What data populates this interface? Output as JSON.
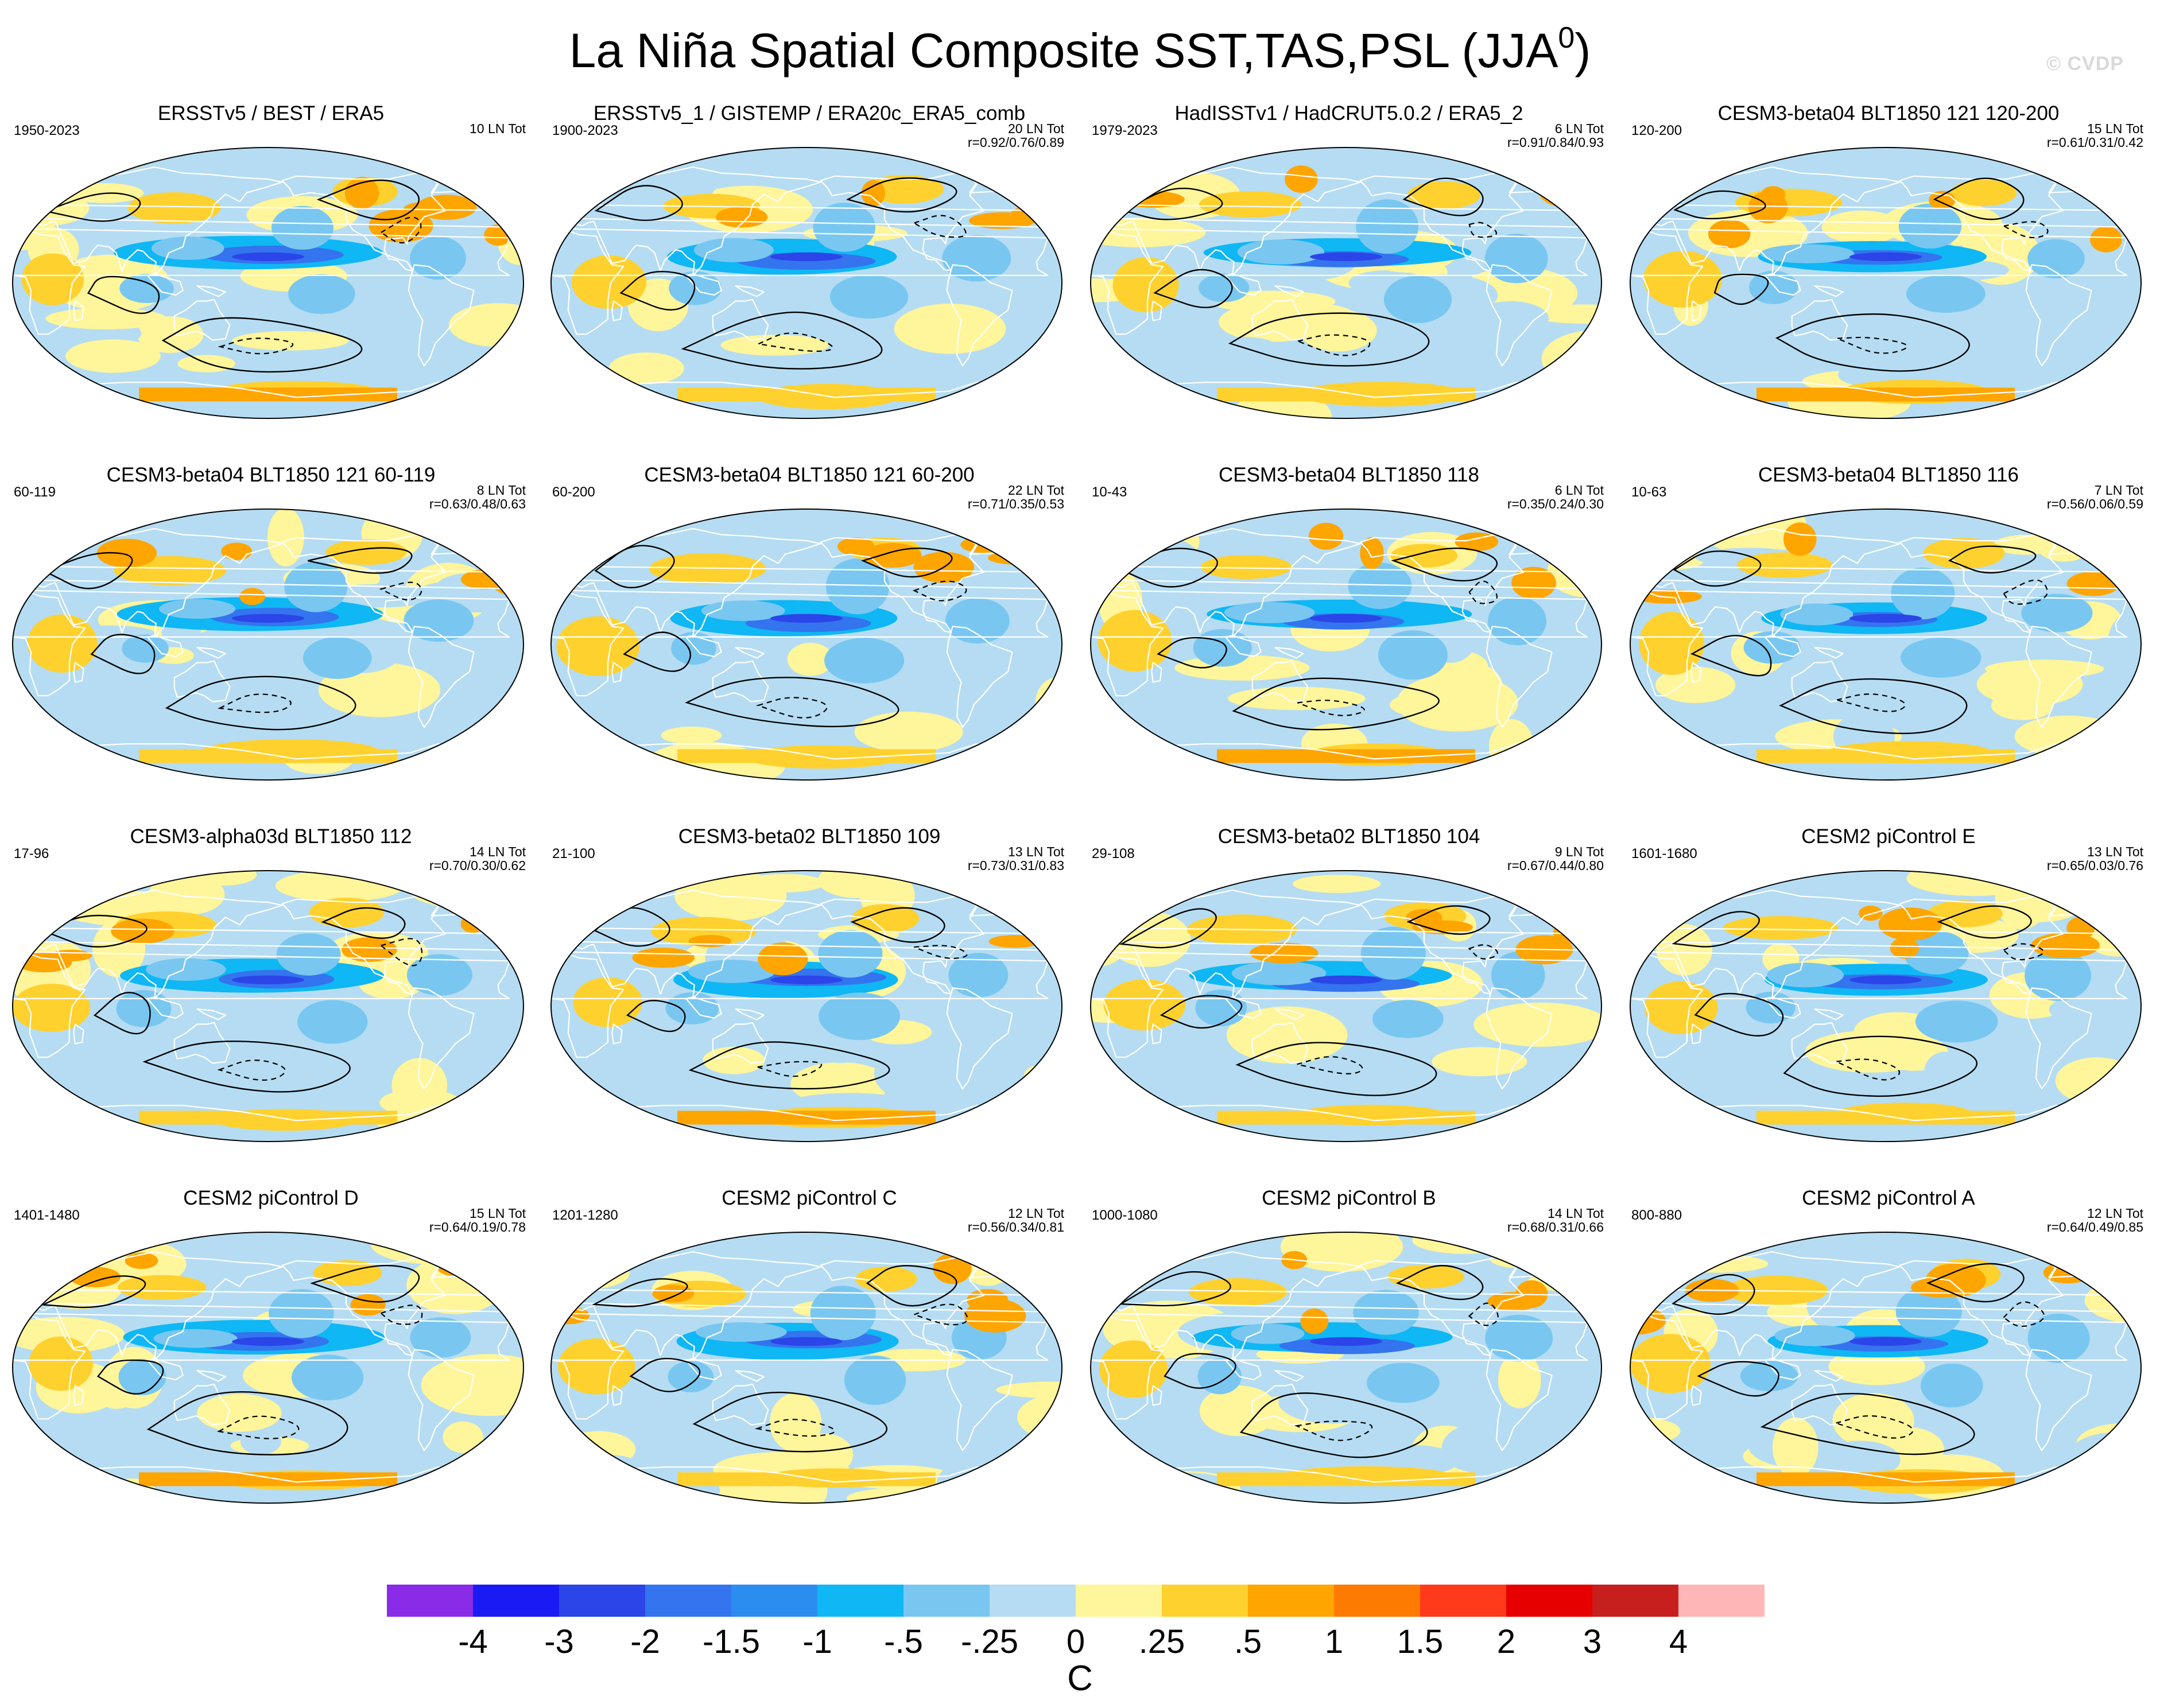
{
  "figure": {
    "title_main": "La Niña Spatial Composite SST,TAS,PSL (JJA",
    "title_sup": "0",
    "title_close": ")",
    "credit": "© CVDP"
  },
  "colors": {
    "contour": "#000000",
    "coast": "#ffffff",
    "map_outline": "#000000"
  },
  "chart_data": {
    "type": "heatmap",
    "projection": "Robinson, Pacific-centered, global",
    "colorbar": {
      "ticks": [
        "-4",
        "-3",
        "-2",
        "-1.5",
        "-1",
        "-.5",
        "-.25",
        "0",
        ".25",
        ".5",
        "1",
        "1.5",
        "2",
        "3",
        "4"
      ],
      "colors": [
        "#8a2be8",
        "#1a1af5",
        "#2b45e8",
        "#3474ee",
        "#2b8df0",
        "#0fb7f4",
        "#79c7f1",
        "#b5dcf2",
        "#fff59a",
        "#ffd12e",
        "#ffa500",
        "#ff7a00",
        "#ff3a1a",
        "#e60000",
        "#c71e1e",
        "#ffb6b6"
      ],
      "unit": "C"
    },
    "panels": [
      {
        "title": "ERSSTv5 / BEST / ERA5",
        "years": "1950-2023",
        "count": "10 LN Tot",
        "stats": ""
      },
      {
        "title": "ERSSTv5_1 / GISTEMP / ERA20c_ERA5_comb",
        "years": "1900-2023",
        "count": "20 LN Tot",
        "stats": "r=0.92/0.76/0.89"
      },
      {
        "title": "HadISSTv1 / HadCRUT5.0.2 / ERA5_2",
        "years": "1979-2023",
        "count": "6 LN Tot",
        "stats": "r=0.91/0.84/0.93"
      },
      {
        "title": "CESM3-beta04 BLT1850 121 120-200",
        "years": "120-200",
        "count": "15 LN Tot",
        "stats": "r=0.61/0.31/0.42"
      },
      {
        "title": "CESM3-beta04 BLT1850 121 60-119",
        "years": "60-119",
        "count": "8 LN Tot",
        "stats": "r=0.63/0.48/0.63"
      },
      {
        "title": "CESM3-beta04 BLT1850 121 60-200",
        "years": "60-200",
        "count": "22 LN Tot",
        "stats": "r=0.71/0.35/0.53"
      },
      {
        "title": "CESM3-beta04 BLT1850 118",
        "years": "10-43",
        "count": "6 LN Tot",
        "stats": "r=0.35/0.24/0.30"
      },
      {
        "title": "CESM3-beta04 BLT1850 116",
        "years": "10-63",
        "count": "7 LN Tot",
        "stats": "r=0.56/0.06/0.59"
      },
      {
        "title": "CESM3-alpha03d BLT1850 112",
        "years": "17-96",
        "count": "14 LN Tot",
        "stats": "r=0.70/0.30/0.62"
      },
      {
        "title": "CESM3-beta02 BLT1850 109",
        "years": "21-100",
        "count": "13 LN Tot",
        "stats": "r=0.73/0.31/0.83"
      },
      {
        "title": "CESM3-beta02 BLT1850 104",
        "years": "29-108",
        "count": "9 LN Tot",
        "stats": "r=0.67/0.44/0.80"
      },
      {
        "title": "CESM2 piControl E",
        "years": "1601-1680",
        "count": "13 LN Tot",
        "stats": "r=0.65/0.03/0.76"
      },
      {
        "title": "CESM2 piControl D",
        "years": "1401-1480",
        "count": "15 LN Tot",
        "stats": "r=0.64/0.19/0.78"
      },
      {
        "title": "CESM2 piControl C",
        "years": "1201-1280",
        "count": "12 LN Tot",
        "stats": "r=0.56/0.34/0.81"
      },
      {
        "title": "CESM2 piControl B",
        "years": "1000-1080",
        "count": "14 LN Tot",
        "stats": "r=0.68/0.31/0.66"
      },
      {
        "title": "CESM2 piControl A",
        "years": "800-880",
        "count": "12 LN Tot",
        "stats": "r=0.64/0.49/0.85"
      }
    ]
  }
}
